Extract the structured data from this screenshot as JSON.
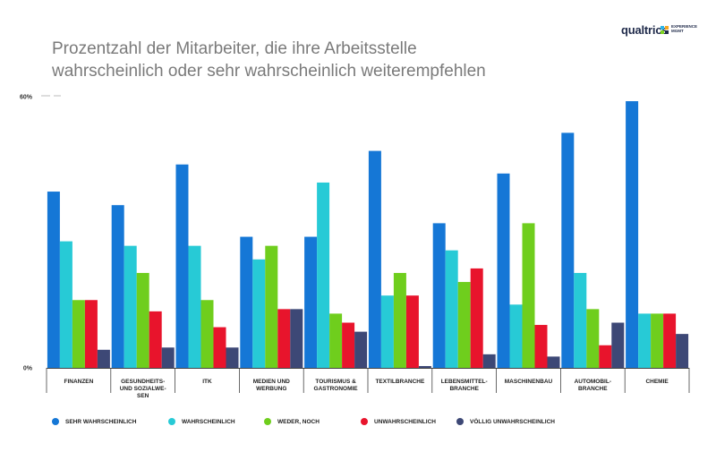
{
  "title": "Prozentzahl der Mitarbeiter, die ihre Arbeitsstelle\nwahrscheinlich oder sehr wahrscheinlich weiterempfehlen",
  "logo": {
    "word": "qualtrics",
    "sub": "EXPERIENCE\nMGMT",
    "dot_colors": [
      "#2bb5e8",
      "#f5a623",
      "#7ed321",
      "#1f2a4a"
    ]
  },
  "chart_data": {
    "type": "bar",
    "title": "Prozentzahl der Mitarbeiter, die ihre Arbeitsstelle wahrscheinlich oder sehr wahrscheinlich weiterempfehlen",
    "ylim": [
      0,
      60
    ],
    "yticks": [
      {
        "value": 0,
        "label": "0%"
      },
      {
        "value": 60,
        "label": "60%"
      }
    ],
    "grid": false,
    "legend_position": "bottom",
    "categories": [
      "FINANZEN",
      "GESUNDHEITS-\nUND SOZIALWE-\nSEN",
      "ITK",
      "MEDIEN UND\nWERBUNG",
      "TOURISMUS &\nGASTRONOMIE",
      "TEXTILBRANCHE",
      "LEBENSMITTEL-\nBRANCHE",
      "MASCHINENBAU",
      "AUTOMOBIL-\nBRANCHE",
      "CHEMIE"
    ],
    "series": [
      {
        "name": "SEHR WAHRSCHEINLICH",
        "color": "#1577d6",
        "values": [
          39,
          36,
          45,
          29,
          29,
          48,
          32,
          43,
          52,
          59
        ]
      },
      {
        "name": "WAHRSCHEINLICH",
        "color": "#27cad6",
        "values": [
          28,
          27,
          27,
          24,
          41,
          16,
          26,
          14,
          21,
          12
        ]
      },
      {
        "name": "WEDER, NOCH",
        "color": "#6fce1d",
        "values": [
          15,
          21,
          15,
          27,
          12,
          21,
          19,
          32,
          13,
          12
        ]
      },
      {
        "name": "UNWAHRSCHEINLICH",
        "color": "#e8142c",
        "values": [
          15,
          12.5,
          9,
          13,
          10,
          16,
          22,
          9.5,
          5,
          12
        ]
      },
      {
        "name": "VÖLLIG UNWAHRSCHEINLICH",
        "color": "#3d4876",
        "values": [
          4,
          4.5,
          4.5,
          13,
          8,
          0.4,
          3,
          2.5,
          10,
          7.5
        ]
      }
    ]
  }
}
